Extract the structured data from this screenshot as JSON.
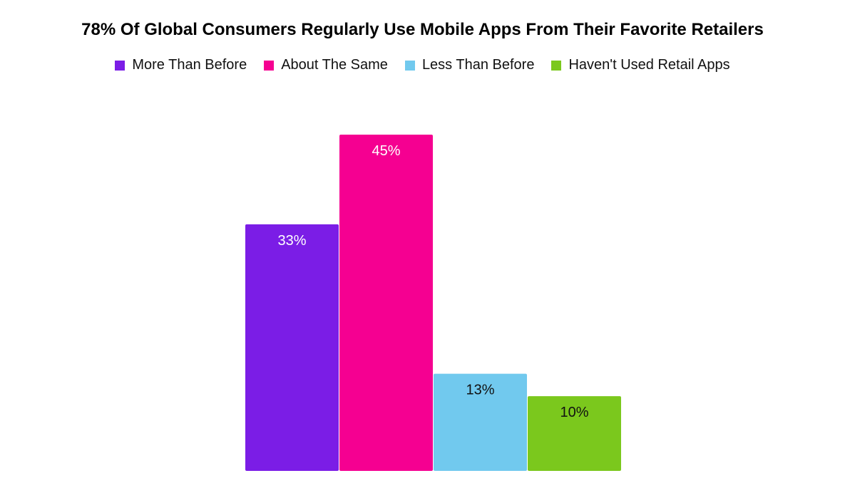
{
  "chart_data": {
    "type": "bar",
    "title": "78% Of Global Consumers Regularly Use Mobile Apps From Their Favorite Retailers",
    "categories": [
      "More Than Before",
      "About The Same",
      "Less Than Before",
      "Haven't Used Retail Apps"
    ],
    "values": [
      33,
      45,
      13,
      10
    ],
    "data_labels": [
      "33%",
      "45%",
      "13%",
      "10%"
    ],
    "colors": [
      "#7b1de6",
      "#f50091",
      "#71c9ee",
      "#7bc81d"
    ],
    "label_colors": [
      "#ffffff",
      "#ffffff",
      "#111111",
      "#111111"
    ],
    "legend": [
      {
        "label": "More Than Before",
        "color": "#7b1de6"
      },
      {
        "label": "About The Same",
        "color": "#f50091"
      },
      {
        "label": "Less Than Before",
        "color": "#71c9ee"
      },
      {
        "label": "Haven't Used Retail Apps",
        "color": "#7bc81d"
      }
    ],
    "legend_position": "top",
    "ylim": [
      0,
      45
    ],
    "grid": false
  }
}
